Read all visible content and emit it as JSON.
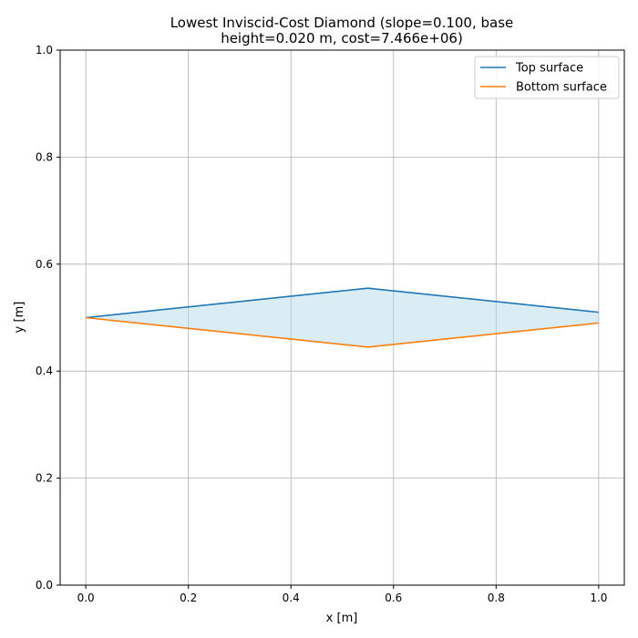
{
  "chart_data": {
    "type": "line",
    "title_lines": [
      "Lowest Inviscid-Cost Diamond (slope=0.100, base",
      "height=0.020 m, cost=7.466e+06)"
    ],
    "xlabel": "x [m]",
    "ylabel": "y [m]",
    "xlim": [
      -0.05,
      1.05
    ],
    "ylim": [
      0.0,
      1.0
    ],
    "xticks": [
      0.0,
      0.2,
      0.4,
      0.6,
      0.8,
      1.0
    ],
    "xtick_labels": [
      "0.0",
      "0.2",
      "0.4",
      "0.6",
      "0.8",
      "1.0"
    ],
    "yticks": [
      0.0,
      0.2,
      0.4,
      0.6,
      0.8,
      1.0
    ],
    "ytick_labels": [
      "0.0",
      "0.2",
      "0.4",
      "0.6",
      "0.8",
      "1.0"
    ],
    "grid": true,
    "legend_position": "top-right",
    "fill_between": {
      "color": "#add8e6",
      "alpha": 0.45,
      "note": ""
    },
    "series": [
      {
        "name": "Top surface",
        "color": "#1f77b4",
        "x": [
          0.0,
          0.55,
          1.0
        ],
        "y": [
          0.5,
          0.555,
          0.51
        ]
      },
      {
        "name": "Bottom surface",
        "color": "#ff7f0e",
        "x": [
          0.0,
          0.55,
          1.0
        ],
        "y": [
          0.5,
          0.445,
          0.49
        ]
      }
    ]
  }
}
